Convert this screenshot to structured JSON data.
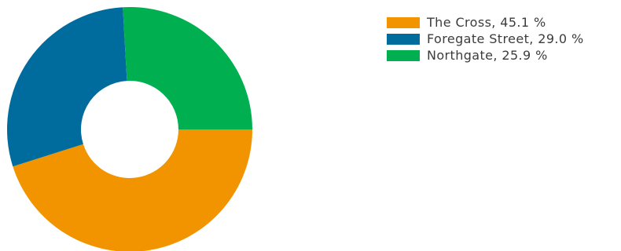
{
  "chart_data": {
    "type": "pie",
    "variant": "donut",
    "title": "",
    "legend_position": "top-right",
    "series": [
      {
        "name": "The Cross",
        "value": 45.1,
        "label": "The Cross, 45.1 %",
        "color": "#f29400"
      },
      {
        "name": "Foregate Street",
        "value": 29.0,
        "label": "Foregate Street, 29.0 %",
        "color": "#006c9e"
      },
      {
        "name": "Northgate",
        "value": 25.9,
        "label": "Northgate, 25.9 %",
        "color": "#00b050"
      }
    ]
  }
}
